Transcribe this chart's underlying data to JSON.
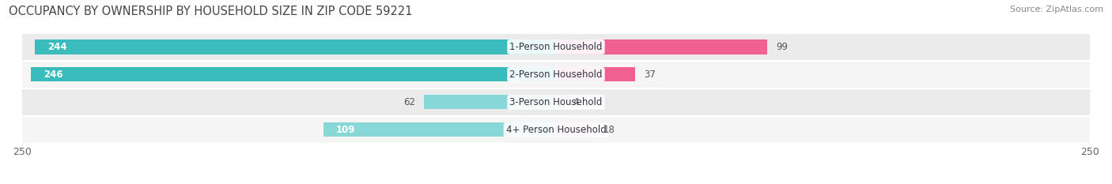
{
  "title": "OCCUPANCY BY OWNERSHIP BY HOUSEHOLD SIZE IN ZIP CODE 59221",
  "source": "Source: ZipAtlas.com",
  "categories": [
    "1-Person Household",
    "2-Person Household",
    "3-Person Household",
    "4+ Person Household"
  ],
  "owner_values": [
    244,
    246,
    62,
    109
  ],
  "renter_values": [
    99,
    37,
    4,
    18
  ],
  "owner_color_full": "#3BBCBC",
  "owner_color_light": "#88D8D8",
  "renter_color_full": "#F06090",
  "renter_color_light": "#F8A8C0",
  "row_bg_color_odd": "#EBEBEB",
  "row_bg_color_even": "#F5F5F5",
  "track_color": "#E0E0E0",
  "axis_max": 250,
  "title_fontsize": 10.5,
  "source_fontsize": 8,
  "label_fontsize": 8.5,
  "value_fontsize": 8.5,
  "tick_fontsize": 9,
  "background_color": "#FFFFFF"
}
